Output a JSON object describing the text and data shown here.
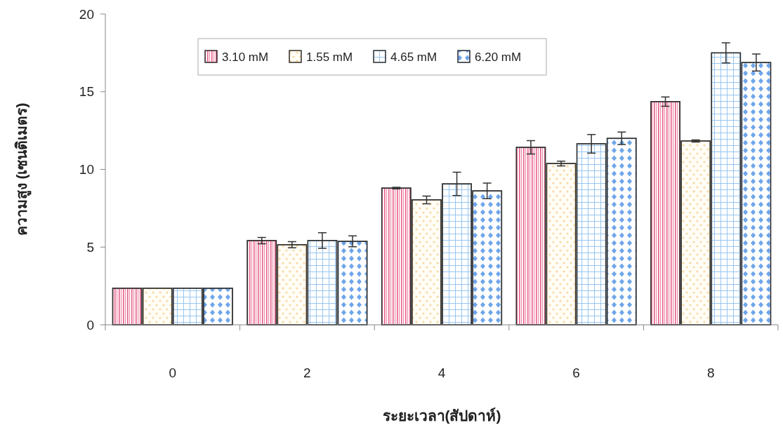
{
  "chart_data": {
    "type": "bar",
    "xlabel": "ระยะเวลา(สัปดาห์)",
    "ylabel": "ความสูง (เซนติเมตร)",
    "categories": [
      "0",
      "2",
      "4",
      "6",
      "8"
    ],
    "ylim": [
      0,
      20
    ],
    "yticks": [
      0,
      5,
      10,
      15,
      20
    ],
    "legend": "top",
    "grid": false,
    "series": [
      {
        "name": "3.10 mM",
        "color": "#e8608a",
        "values": [
          2.35,
          5.42,
          8.8,
          11.42,
          14.36
        ],
        "errors": [
          null,
          0.2,
          0.05,
          0.43,
          0.3
        ]
      },
      {
        "name": "1.55 mM",
        "color": "#f2c16e",
        "values": [
          2.35,
          5.15,
          8.04,
          10.38,
          11.83
        ],
        "errors": [
          null,
          0.2,
          0.25,
          0.15,
          0.07
        ]
      },
      {
        "name": "4.65 mM",
        "color": "#8fc0ee",
        "values": [
          2.35,
          5.42,
          9.07,
          11.65,
          17.5
        ],
        "errors": [
          null,
          0.5,
          0.75,
          0.6,
          0.65
        ]
      },
      {
        "name": "6.20 mM",
        "color": "#6fa6ea",
        "values": [
          2.35,
          5.37,
          8.62,
          12.0,
          16.88
        ],
        "errors": [
          null,
          0.35,
          0.5,
          0.4,
          0.55
        ]
      }
    ]
  }
}
